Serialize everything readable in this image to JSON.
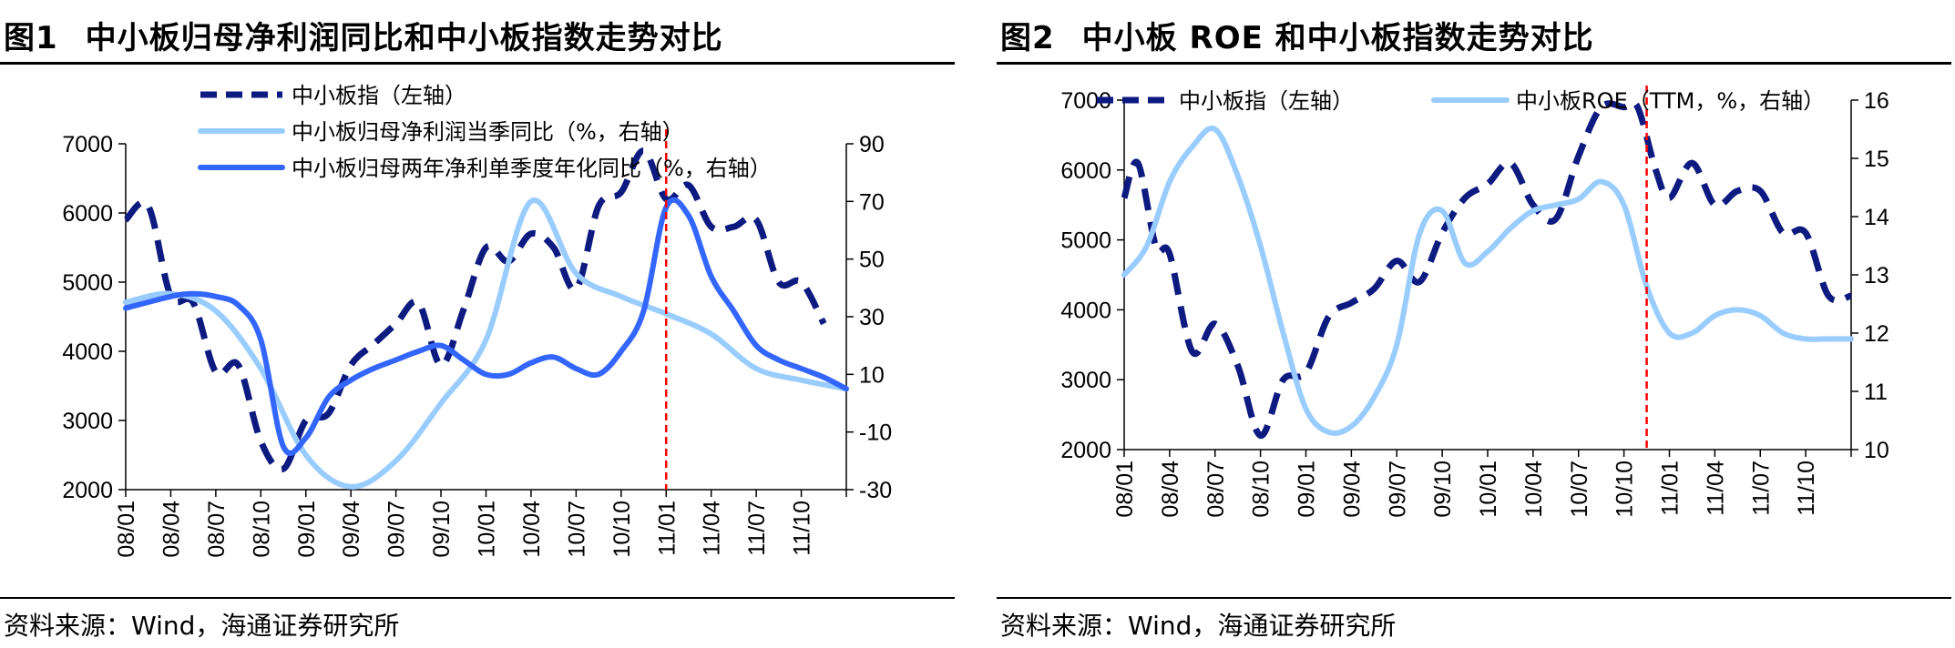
{
  "charts": [
    {
      "fig_label": "图1",
      "title": "中小板归母净利润同比和中小板指数走势对比",
      "source": "资料来源：Wind，海通证券研究所"
    },
    {
      "fig_label": "图2",
      "title": "中小板 ROE 和中小板指数走势对比",
      "source": "资料来源：Wind，海通证券研究所"
    }
  ],
  "colors": {
    "dark_navy": "#0d1a80",
    "light_blue": "#99ccff",
    "mid_blue": "#3366ff",
    "marker_red": "#ff0000"
  },
  "chart_data": [
    {
      "type": "line",
      "x_ticks": [
        "08/01",
        "08/04",
        "08/07",
        "08/10",
        "09/01",
        "09/04",
        "09/07",
        "09/10",
        "10/01",
        "10/04",
        "10/07",
        "10/10",
        "11/01",
        "11/04",
        "11/07",
        "11/10"
      ],
      "y_left": {
        "ylim": [
          2000,
          7000
        ],
        "ticks": [
          "7000",
          "6000",
          "5000",
          "4000",
          "3000",
          "2000"
        ]
      },
      "y_right": {
        "ylim": [
          -30,
          90
        ],
        "ticks": [
          "90",
          "70",
          "50",
          "30",
          "10",
          "-10",
          "-30"
        ]
      },
      "marker_x": 12,
      "series": [
        {
          "name": "中小板指（左轴）",
          "axis": "left",
          "style": "dashed",
          "color": "#0d1a80",
          "x": [
            0,
            0.5,
            1,
            1.5,
            2,
            2.5,
            3,
            3.5,
            4,
            4.5,
            5,
            5.5,
            6,
            6.5,
            7,
            7.5,
            8,
            8.5,
            9,
            9.5,
            10,
            10.5,
            11,
            11.5,
            12,
            12.5,
            13,
            13.5,
            14,
            14.5,
            15,
            15.5
          ],
          "values": [
            5900,
            6100,
            4800,
            4700,
            3700,
            3800,
            2700,
            2300,
            3000,
            3100,
            3800,
            4100,
            4400,
            4700,
            3800,
            4600,
            5500,
            5300,
            5700,
            5500,
            4900,
            6100,
            6300,
            6900,
            6200,
            6400,
            5800,
            5800,
            5900,
            5000,
            5000,
            4400
          ]
        },
        {
          "name": "中小板归母净利润当季同比（%，右轴）",
          "axis": "right",
          "style": "solid",
          "color": "#99ccff",
          "x": [
            0,
            1,
            2,
            3,
            4,
            5,
            6,
            7,
            8,
            9,
            10,
            11,
            12,
            13,
            14,
            15,
            16
          ],
          "values": [
            35,
            38,
            32,
            12,
            -18,
            -29,
            -20,
            0,
            22,
            70,
            45,
            37,
            31,
            24,
            12,
            8,
            5
          ]
        },
        {
          "name": "中小板归母两年净利单季度年化同比（%，右轴）",
          "axis": "right",
          "style": "solid",
          "color": "#3366ff",
          "x": [
            0,
            1,
            1.5,
            2,
            2.5,
            3,
            3.5,
            4,
            4.5,
            5,
            5.5,
            6,
            6.5,
            7,
            7.5,
            8,
            8.5,
            9,
            9.5,
            10,
            10.5,
            11,
            11.5,
            12,
            12.5,
            13,
            13.5,
            14,
            14.5,
            15,
            15.5,
            16
          ],
          "values": [
            33,
            37,
            38,
            37,
            34,
            22,
            -15,
            -12,
            2,
            8,
            12,
            15,
            18,
            20,
            15,
            10,
            10,
            14,
            16,
            12,
            10,
            18,
            32,
            68,
            65,
            44,
            32,
            20,
            15,
            12,
            9,
            5
          ]
        }
      ]
    },
    {
      "type": "line",
      "x_ticks": [
        "08/01",
        "08/04",
        "08/07",
        "08/10",
        "09/01",
        "09/04",
        "09/07",
        "09/10",
        "10/01",
        "10/04",
        "10/07",
        "10/10",
        "11/01",
        "11/04",
        "11/07",
        "11/10"
      ],
      "y_left": {
        "ylim": [
          2000,
          7000
        ],
        "ticks": [
          "7000",
          "6000",
          "5000",
          "4000",
          "3000",
          "2000"
        ]
      },
      "y_right": {
        "ylim": [
          10,
          16
        ],
        "ticks": [
          "16",
          "15",
          "14",
          "13",
          "12",
          "11",
          "10"
        ]
      },
      "marker_x": 11.5,
      "series": [
        {
          "name": "中小板指（左轴）",
          "axis": "left",
          "style": "dashed",
          "color": "#0d1a80",
          "x": [
            0,
            0.3,
            0.7,
            1,
            1.5,
            2,
            2.5,
            3,
            3.5,
            4,
            4.5,
            5,
            5.5,
            6,
            6.5,
            7,
            7.5,
            8,
            8.5,
            9,
            9.5,
            10,
            10.5,
            11,
            11.3,
            11.7,
            12,
            12.5,
            13,
            13.5,
            14,
            14.5,
            15,
            15.5,
            16
          ],
          "values": [
            5600,
            6100,
            4900,
            4800,
            3400,
            3800,
            3200,
            2200,
            3000,
            3100,
            3900,
            4100,
            4300,
            4700,
            4400,
            5100,
            5600,
            5800,
            6100,
            5500,
            5300,
            6200,
            6900,
            6900,
            6900,
            6000,
            5600,
            6100,
            5500,
            5700,
            5700,
            5100,
            5100,
            4200,
            4200
          ]
        },
        {
          "name": "中小板ROE（TTM，%，右轴）",
          "axis": "right",
          "style": "solid",
          "color": "#99ccff",
          "x": [
            0,
            0.5,
            1,
            1.5,
            2,
            2.5,
            3,
            3.5,
            4,
            4.5,
            5,
            5.5,
            6,
            6.5,
            7,
            7.5,
            8,
            8.5,
            9,
            9.5,
            10,
            10.5,
            11,
            11.5,
            12,
            12.5,
            13,
            13.5,
            14,
            14.5,
            15,
            15.5,
            16
          ],
          "values": [
            13.0,
            13.5,
            14.6,
            15.2,
            15.5,
            14.7,
            13.5,
            12.0,
            10.7,
            10.3,
            10.4,
            10.9,
            11.8,
            13.7,
            14.1,
            13.2,
            13.4,
            13.8,
            14.1,
            14.2,
            14.3,
            14.6,
            14.2,
            12.8,
            12.0,
            12.0,
            12.3,
            12.4,
            12.3,
            12.0,
            11.9,
            11.9,
            11.9
          ]
        }
      ]
    }
  ]
}
